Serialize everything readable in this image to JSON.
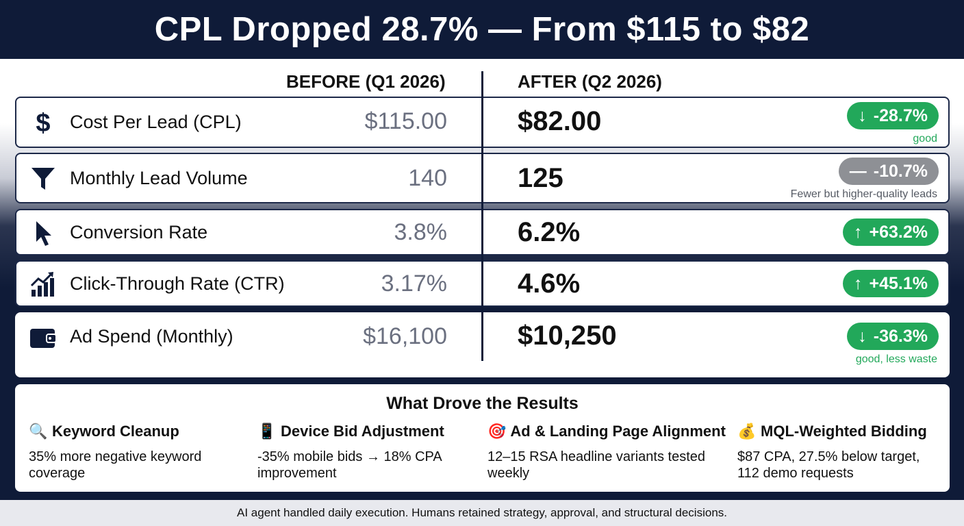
{
  "header": {
    "title": "CPL Dropped 28.7% — From $115 to $82"
  },
  "columns": {
    "before": "BEFORE (Q1 2026)",
    "after": "AFTER (Q2 2026)"
  },
  "metrics": [
    {
      "icon": "dollar-icon",
      "label": "Cost Per Lead (CPL)",
      "before": "$115.00",
      "after": "$82.00",
      "change": "-28.7%",
      "direction": "down",
      "status": "green",
      "note": "good"
    },
    {
      "icon": "funnel-icon",
      "label": "Monthly Lead Volume",
      "before": "140",
      "after": "125",
      "change": "-10.7%",
      "direction": "flat",
      "status": "gray",
      "note": "Fewer but higher-quality leads"
    },
    {
      "icon": "cursor-icon",
      "label": "Conversion Rate",
      "before": "3.8%",
      "after": "6.2%",
      "change": "+63.2%",
      "direction": "up",
      "status": "green",
      "note": ""
    },
    {
      "icon": "bar-chart-icon",
      "label": "Click-Through Rate (CTR)",
      "before": "3.17%",
      "after": "4.6%",
      "change": "+45.1%",
      "direction": "up",
      "status": "green",
      "note": ""
    },
    {
      "icon": "wallet-icon",
      "label": "Ad Spend (Monthly)",
      "before": "$16,100",
      "after": "$10,250",
      "change": "-36.3%",
      "direction": "down",
      "status": "green",
      "note": "good, less waste"
    }
  ],
  "drivers": {
    "title": "What Drove the Results",
    "items": [
      {
        "emoji": "🔍",
        "icon": "magnifier-icon",
        "title": "Keyword Cleanup",
        "text": "35% more negative keyword coverage"
      },
      {
        "emoji": "📱",
        "icon": "phone-icon",
        "title": "Device Bid Adjustment",
        "text": "-35% mobile bids → 18% CPA improvement"
      },
      {
        "emoji": "🎯",
        "icon": "target-icon",
        "title": "Ad & Landing Page Alignment",
        "text": "12–15 RSA headline variants tested weekly"
      },
      {
        "emoji": "💰",
        "icon": "money-bag-icon",
        "title": "MQL-Weighted Bidding",
        "text": "$87 CPA, 27.5% below target, 112 demo requests"
      }
    ]
  },
  "footer": {
    "text": "AI agent handled daily execution. Humans retained strategy, approval, and structural decisions."
  },
  "colors": {
    "navy": "#0f1b38",
    "green": "#22a85a",
    "gray": "#8e9095",
    "before_text": "#6b7080"
  }
}
